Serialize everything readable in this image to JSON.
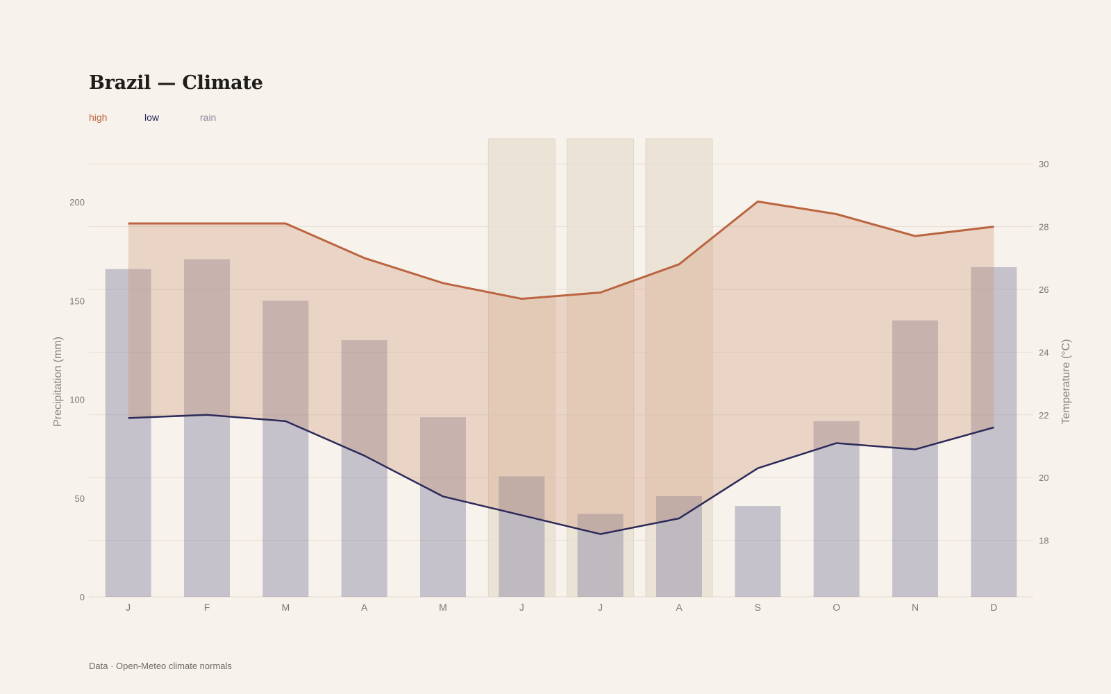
{
  "title": "Brazil — Climate",
  "legend": [
    {
      "label": "high",
      "color": "#bb6440"
    },
    {
      "label": "low",
      "color": "#2c2a5a"
    },
    {
      "label": "rain",
      "color": "#8a87a3"
    }
  ],
  "footer": "Data · Open-Meteo climate normals",
  "chart_data": {
    "type": "bar+line",
    "categories": [
      "J",
      "F",
      "M",
      "A",
      "M",
      "J",
      "J",
      "A",
      "S",
      "O",
      "N",
      "D"
    ],
    "series": [
      {
        "name": "rain",
        "type": "bar",
        "axis": "left",
        "color": "#8a87a3",
        "values": [
          166,
          171,
          150,
          130,
          91,
          61,
          42,
          51,
          46,
          89,
          140,
          167
        ]
      },
      {
        "name": "high",
        "type": "line",
        "axis": "right",
        "color": "#bb6440",
        "values": [
          28.1,
          28.1,
          28.1,
          27.0,
          26.2,
          25.7,
          25.9,
          26.8,
          28.8,
          28.4,
          27.7,
          28.0
        ]
      },
      {
        "name": "low",
        "type": "line",
        "axis": "right",
        "color": "#2c2a5a",
        "values": [
          21.9,
          22.0,
          21.8,
          20.7,
          19.4,
          18.8,
          18.2,
          18.7,
          20.3,
          21.1,
          20.9,
          21.6
        ]
      }
    ],
    "band_between": [
      "low",
      "high"
    ],
    "highlighted_months": [
      5,
      6,
      7
    ],
    "ylabel_left": "Precipitation (mm)",
    "ylabel_right": "Temperature (°C)",
    "yticks_left": [
      0,
      50,
      100,
      150,
      200
    ],
    "yticks_right": [
      18,
      20,
      22,
      24,
      26,
      28,
      30
    ],
    "ylim_left": [
      0,
      232
    ],
    "ylim_right": [
      16.2,
      30.8
    ],
    "grid": true,
    "legend_position": "top-left"
  }
}
